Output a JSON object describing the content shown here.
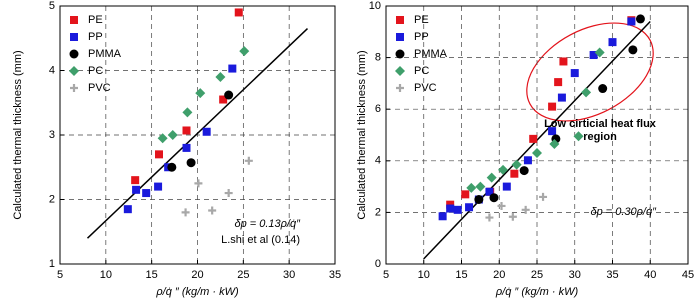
{
  "chart_data": [
    {
      "type": "scatter",
      "xlabel": "ρ/q̇ ″  (kg/m · kW)",
      "ylabel": "Calculated thermal thickness (mm)",
      "xlim": [
        5,
        35
      ],
      "xticks": [
        5,
        10,
        15,
        20,
        25,
        30,
        35
      ],
      "ylim": [
        1,
        5
      ],
      "yticks": [
        1,
        2,
        3,
        4,
        5
      ],
      "grid": true,
      "legend": "upper left",
      "series": [
        {
          "name": "PE",
          "color": "#e3141c",
          "marker": "square",
          "x": [
            13.2,
            15.8,
            18.8,
            22.8,
            24.5
          ],
          "y": [
            2.3,
            2.7,
            3.07,
            3.55,
            4.9
          ]
        },
        {
          "name": "PP",
          "color": "#1a1adc",
          "marker": "square",
          "x": [
            12.4,
            13.3,
            14.4,
            15.7,
            16.8,
            18.8,
            21,
            23.8
          ],
          "y": [
            1.85,
            2.15,
            2.1,
            2.2,
            2.5,
            2.8,
            3.05,
            4.03
          ]
        },
        {
          "name": "PMMA",
          "color": "#000000",
          "marker": "circle",
          "x": [
            17.2,
            19.3,
            23.4
          ],
          "y": [
            2.5,
            2.57,
            3.62
          ]
        },
        {
          "name": "PC",
          "color": "#3f9f6b",
          "marker": "diamond",
          "x": [
            16.2,
            17.3,
            18.9,
            20.3,
            22.5,
            25.1
          ],
          "y": [
            2.95,
            3.0,
            3.35,
            3.65,
            3.9,
            4.3
          ]
        },
        {
          "name": "PVC",
          "color": "#a8a8a8",
          "marker": "plus",
          "x": [
            18.7,
            20.1,
            21.6,
            23.4,
            25.6
          ],
          "y": [
            1.8,
            2.25,
            1.83,
            2.1,
            2.6
          ]
        }
      ],
      "fit_line": {
        "x": [
          8,
          32
        ],
        "y": [
          1.4,
          4.65
        ]
      },
      "annotations": [
        "δp = 0.13ρ/q̇″",
        "L.shi et al (0.14)"
      ]
    },
    {
      "type": "scatter",
      "xlabel": "ρ/q̇ ″  (kg/m · kW)",
      "ylabel": "Calculated thermal thickness (mm)",
      "xlim": [
        5,
        45
      ],
      "xticks": [
        5,
        10,
        15,
        20,
        25,
        30,
        35,
        40,
        45
      ],
      "ylim": [
        0,
        10
      ],
      "yticks": [
        0,
        2,
        4,
        6,
        8,
        10
      ],
      "grid": true,
      "legend": "upper left",
      "series": [
        {
          "name": "PE",
          "color": "#e3141c",
          "marker": "square",
          "x": [
            13.5,
            15.5,
            18.8,
            22,
            24.5,
            27,
            27.8,
            28.5,
            37.5
          ],
          "y": [
            2.3,
            2.7,
            2.8,
            3.5,
            4.85,
            6.1,
            7.05,
            7.85,
            9.45
          ]
        },
        {
          "name": "PP",
          "color": "#1a1adc",
          "marker": "square",
          "x": [
            12.5,
            13.5,
            14.5,
            16,
            17.3,
            18.7,
            21,
            23.8,
            27,
            28.3,
            30,
            32.5,
            35,
            37.5
          ],
          "y": [
            1.85,
            2.15,
            2.1,
            2.2,
            2.5,
            2.8,
            3,
            4.02,
            5.15,
            6.45,
            7.4,
            8.1,
            8.6,
            9.4
          ]
        },
        {
          "name": "PMMA",
          "color": "#000000",
          "marker": "circle",
          "x": [
            17.3,
            19.3,
            23.3,
            27.5,
            33.7,
            37.7,
            38.7
          ],
          "y": [
            2.5,
            2.57,
            3.62,
            4.85,
            6.8,
            8.3,
            9.5
          ]
        },
        {
          "name": "PC",
          "color": "#3f9f6b",
          "marker": "diamond",
          "x": [
            16.3,
            17.5,
            19,
            20.5,
            22.3,
            25,
            27.3,
            30.5,
            31.5,
            33.3
          ],
          "y": [
            2.95,
            3,
            3.35,
            3.65,
            3.85,
            4.3,
            4.65,
            4.95,
            6.65,
            8.2
          ]
        },
        {
          "name": "PVC",
          "color": "#a8a8a8",
          "marker": "plus",
          "x": [
            18.7,
            20.3,
            21.8,
            23.5,
            25.8
          ],
          "y": [
            1.8,
            2.25,
            1.83,
            2.1,
            2.6
          ]
        }
      ],
      "fit_line": {
        "x": [
          10,
          40
        ],
        "y": [
          0.2,
          9.4
        ]
      },
      "annotations": [
        "δp = 0.30ρ/q̇″",
        "Low cirticial heat flux",
        "region"
      ]
    }
  ]
}
